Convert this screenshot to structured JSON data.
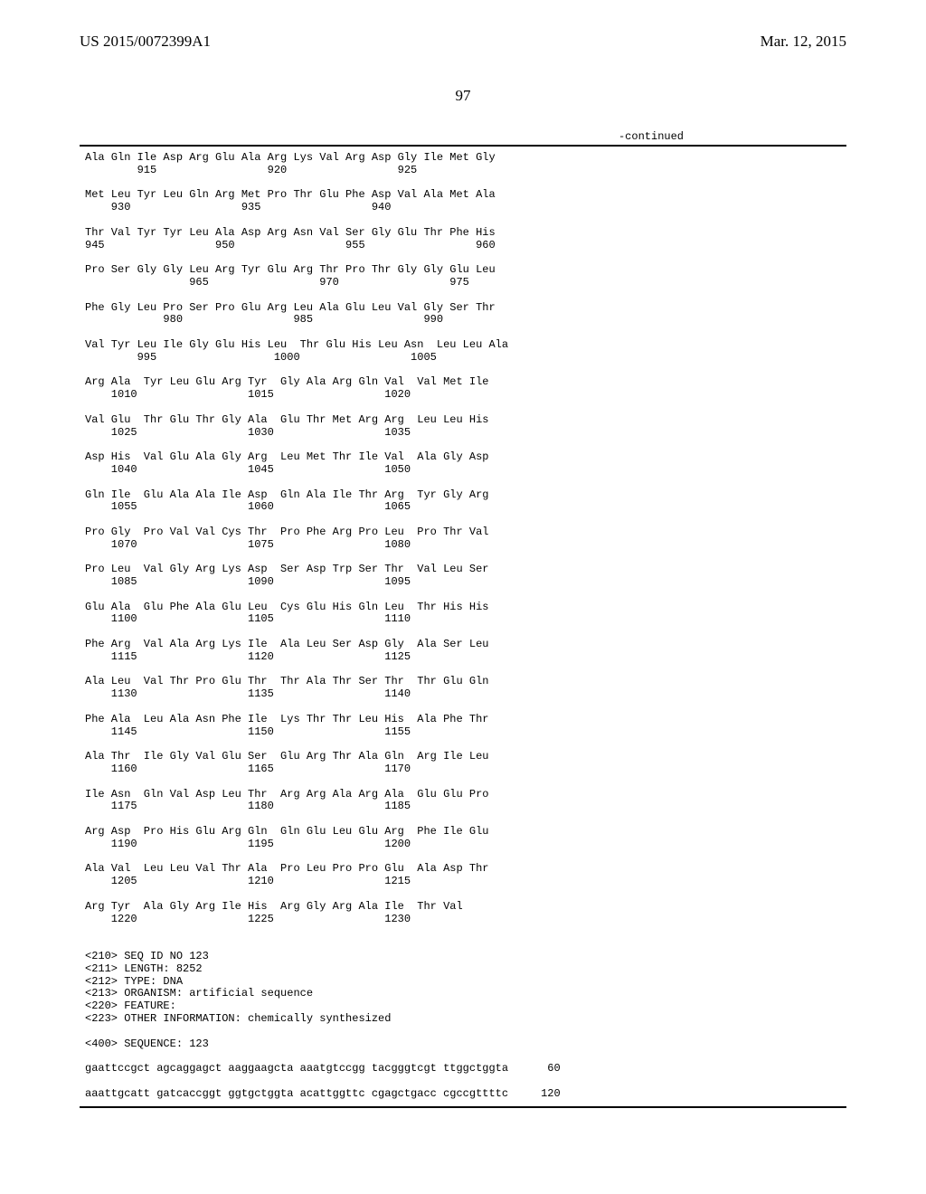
{
  "header": {
    "left": "US 2015/0072399A1",
    "right": "Mar. 12, 2015"
  },
  "page_number": "97",
  "continued_label": "-continued",
  "sequence_block": "Ala Gln Ile Asp Arg Glu Ala Arg Lys Val Arg Asp Gly Ile Met Gly\n        915                 920                 925\n\nMet Leu Tyr Leu Gln Arg Met Pro Thr Glu Phe Asp Val Ala Met Ala\n    930                 935                 940\n\nThr Val Tyr Tyr Leu Ala Asp Arg Asn Val Ser Gly Glu Thr Phe His\n945                 950                 955                 960\n\nPro Ser Gly Gly Leu Arg Tyr Glu Arg Thr Pro Thr Gly Gly Glu Leu\n                965                 970                 975\n\nPhe Gly Leu Pro Ser Pro Glu Arg Leu Ala Glu Leu Val Gly Ser Thr\n            980                 985                 990\n\nVal Tyr Leu Ile Gly Glu His Leu  Thr Glu His Leu Asn  Leu Leu Ala\n        995                  1000                 1005\n\nArg Ala  Tyr Leu Glu Arg Tyr  Gly Ala Arg Gln Val  Val Met Ile\n    1010                 1015                 1020\n\nVal Glu  Thr Glu Thr Gly Ala  Glu Thr Met Arg Arg  Leu Leu His\n    1025                 1030                 1035\n\nAsp His  Val Glu Ala Gly Arg  Leu Met Thr Ile Val  Ala Gly Asp\n    1040                 1045                 1050\n\nGln Ile  Glu Ala Ala Ile Asp  Gln Ala Ile Thr Arg  Tyr Gly Arg\n    1055                 1060                 1065\n\nPro Gly  Pro Val Val Cys Thr  Pro Phe Arg Pro Leu  Pro Thr Val\n    1070                 1075                 1080\n\nPro Leu  Val Gly Arg Lys Asp  Ser Asp Trp Ser Thr  Val Leu Ser\n    1085                 1090                 1095\n\nGlu Ala  Glu Phe Ala Glu Leu  Cys Glu His Gln Leu  Thr His His\n    1100                 1105                 1110\n\nPhe Arg  Val Ala Arg Lys Ile  Ala Leu Ser Asp Gly  Ala Ser Leu\n    1115                 1120                 1125\n\nAla Leu  Val Thr Pro Glu Thr  Thr Ala Thr Ser Thr  Thr Glu Gln\n    1130                 1135                 1140\n\nPhe Ala  Leu Ala Asn Phe Ile  Lys Thr Thr Leu His  Ala Phe Thr\n    1145                 1150                 1155\n\nAla Thr  Ile Gly Val Glu Ser  Glu Arg Thr Ala Gln  Arg Ile Leu\n    1160                 1165                 1170\n\nIle Asn  Gln Val Asp Leu Thr  Arg Arg Ala Arg Ala  Glu Glu Pro\n    1175                 1180                 1185\n\nArg Asp  Pro His Glu Arg Gln  Gln Glu Leu Glu Arg  Phe Ile Glu\n    1190                 1195                 1200\n\nAla Val  Leu Leu Val Thr Ala  Pro Leu Pro Pro Glu  Ala Asp Thr\n    1205                 1210                 1215\n\nArg Tyr  Ala Gly Arg Ile His  Arg Gly Arg Ala Ile  Thr Val\n    1220                 1225                 1230\n\n\n<210> SEQ ID NO 123\n<211> LENGTH: 8252\n<212> TYPE: DNA\n<213> ORGANISM: artificial sequence\n<220> FEATURE:\n<223> OTHER INFORMATION: chemically synthesized\n\n<400> SEQUENCE: 123\n\ngaattccgct agcaggagct aaggaagcta aaatgtccgg tacgggtcgt ttggctggta      60\n\naaattgcatt gatcaccggt ggtgctggta acattggttc cgagctgacc cgccgttttc     120"
}
